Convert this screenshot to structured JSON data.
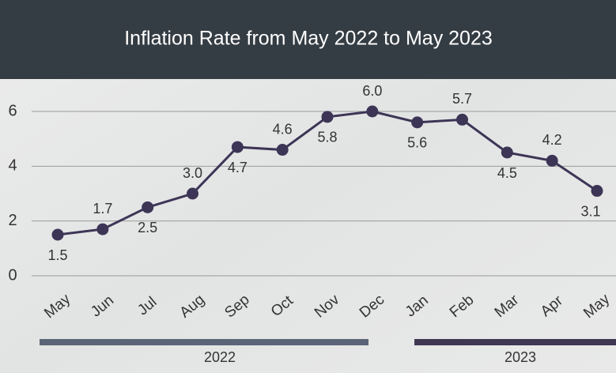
{
  "chart_data": {
    "type": "line",
    "title": "Inflation Rate from May 2022 to May 2023",
    "categories": [
      "May",
      "Jun",
      "Jul",
      "Aug",
      "Sep",
      "Oct",
      "Nov",
      "Dec",
      "Jan",
      "Feb",
      "Mar",
      "Apr",
      "May"
    ],
    "values": [
      1.5,
      1.7,
      2.5,
      3.0,
      4.7,
      4.6,
      5.8,
      6.0,
      5.6,
      5.7,
      4.5,
      4.2,
      3.1
    ],
    "value_labels": [
      "1.5",
      "1.7",
      "2.5",
      "3.0",
      "4.7",
      "4.6",
      "5.8",
      "6.0",
      "5.6",
      "5.7",
      "4.5",
      "4.2",
      "3.1"
    ],
    "color": "#3d3556",
    "ylim": [
      0,
      6
    ],
    "yticks": [
      0,
      2,
      4,
      6
    ],
    "grid": true,
    "x_groups": [
      {
        "label": "2022",
        "color": "#5b6577"
      },
      {
        "label": "2023",
        "color": "#3f3753"
      }
    ]
  }
}
